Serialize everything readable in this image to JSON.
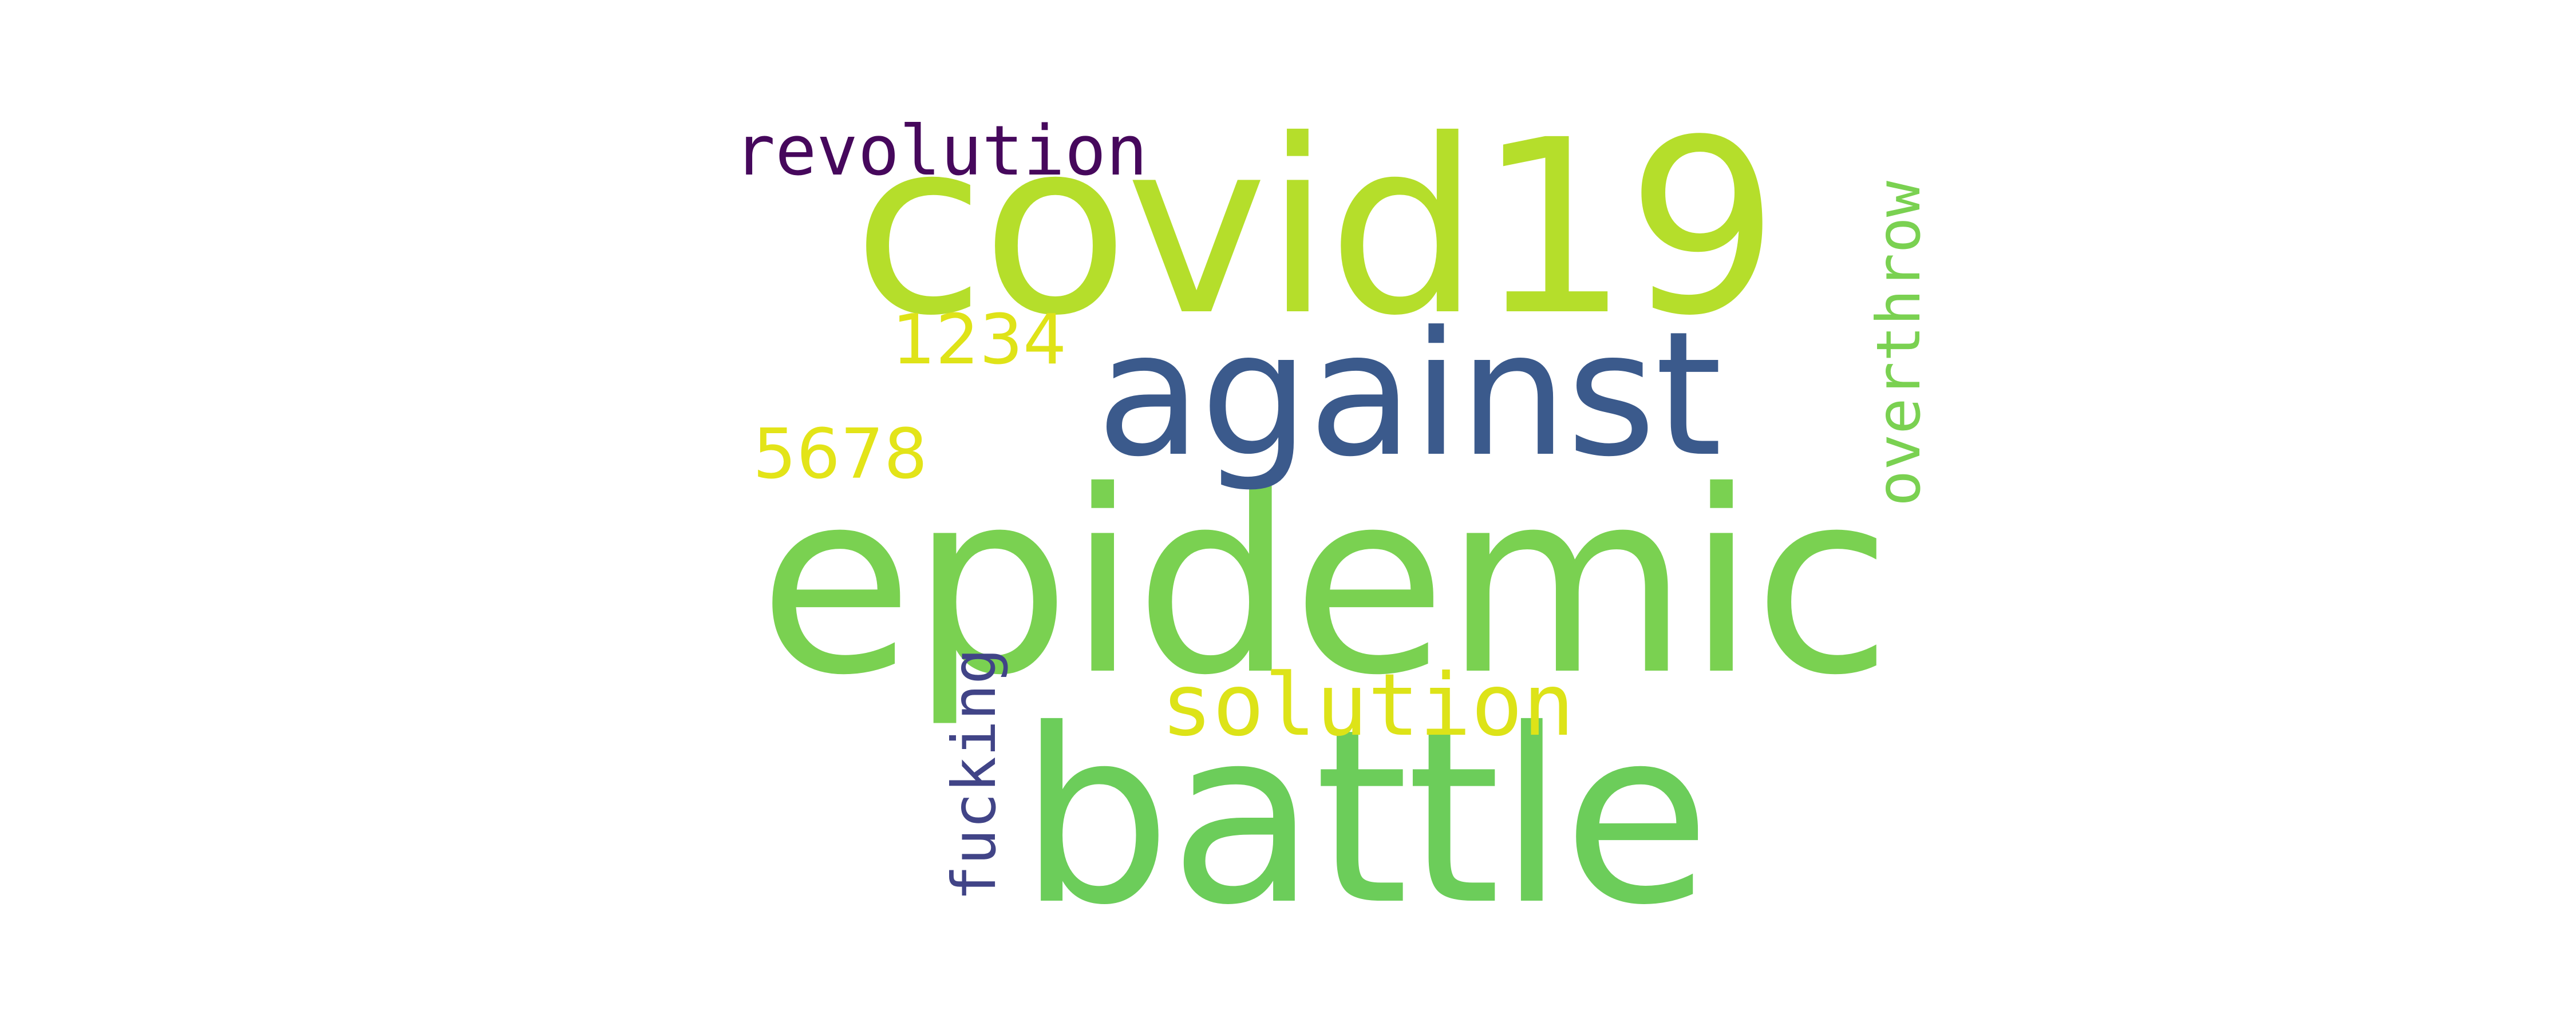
{
  "word_cloud": {
    "background": "#ffffff",
    "words": [
      {
        "text": "covid19",
        "color": "#b5de2b",
        "orientation": "horizontal"
      },
      {
        "text": "epidemic",
        "color": "#7ad151",
        "orientation": "horizontal"
      },
      {
        "text": "battle",
        "color": "#6ccd5a",
        "orientation": "horizontal"
      },
      {
        "text": "against",
        "color": "#3b5a8c",
        "orientation": "horizontal"
      },
      {
        "text": "revolution",
        "color": "#46085c",
        "orientation": "horizontal"
      },
      {
        "text": "solution",
        "color": "#dde318",
        "orientation": "horizontal"
      },
      {
        "text": "1234",
        "color": "#dfe318",
        "orientation": "horizontal"
      },
      {
        "text": "5678",
        "color": "#e3e418",
        "orientation": "horizontal"
      },
      {
        "text": "overthrow",
        "color": "#7ad151",
        "orientation": "vertical"
      },
      {
        "text": "fucking",
        "color": "#414487",
        "orientation": "vertical"
      }
    ]
  }
}
